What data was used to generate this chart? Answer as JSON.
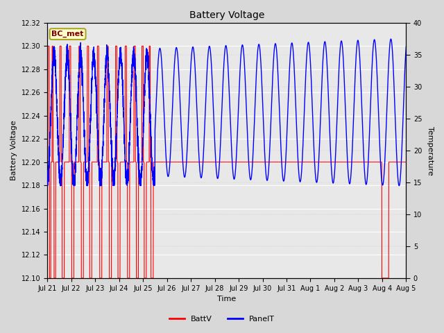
{
  "title": "Battery Voltage",
  "ylabel_left": "Battery Voltage",
  "ylabel_right": "Temperature",
  "xlabel": "Time",
  "ylim_left": [
    12.1,
    12.32
  ],
  "ylim_right": [
    0,
    40
  ],
  "bg_color": "#d8d8d8",
  "plot_bg_color": "#e8e8e8",
  "label_box_text": "BC_met",
  "label_box_facecolor": "#ffffcc",
  "label_box_edgecolor": "#aaa820",
  "label_box_textcolor": "#800000",
  "battv_color": "#ff0000",
  "panelt_color": "#0000ff",
  "legend_battv": "BattV",
  "legend_panelt": "PanelT",
  "figsize": [
    6.4,
    4.8
  ],
  "dpi": 100,
  "x_ticks": [
    0,
    1,
    2,
    3,
    4,
    5,
    6,
    7,
    8,
    9,
    10,
    11,
    12,
    13,
    14,
    15
  ],
  "x_labels": [
    "Jul 21",
    "Jul 22",
    "Jul 23",
    "Jul 24",
    "Jul 25",
    "Jul 26",
    "Jul 27",
    "Jul 28",
    "Jul 29",
    "Jul 30",
    "Jul 31",
    "Aug 1",
    "Aug 2",
    "Aug 3",
    "Aug 4",
    "Aug 5"
  ]
}
